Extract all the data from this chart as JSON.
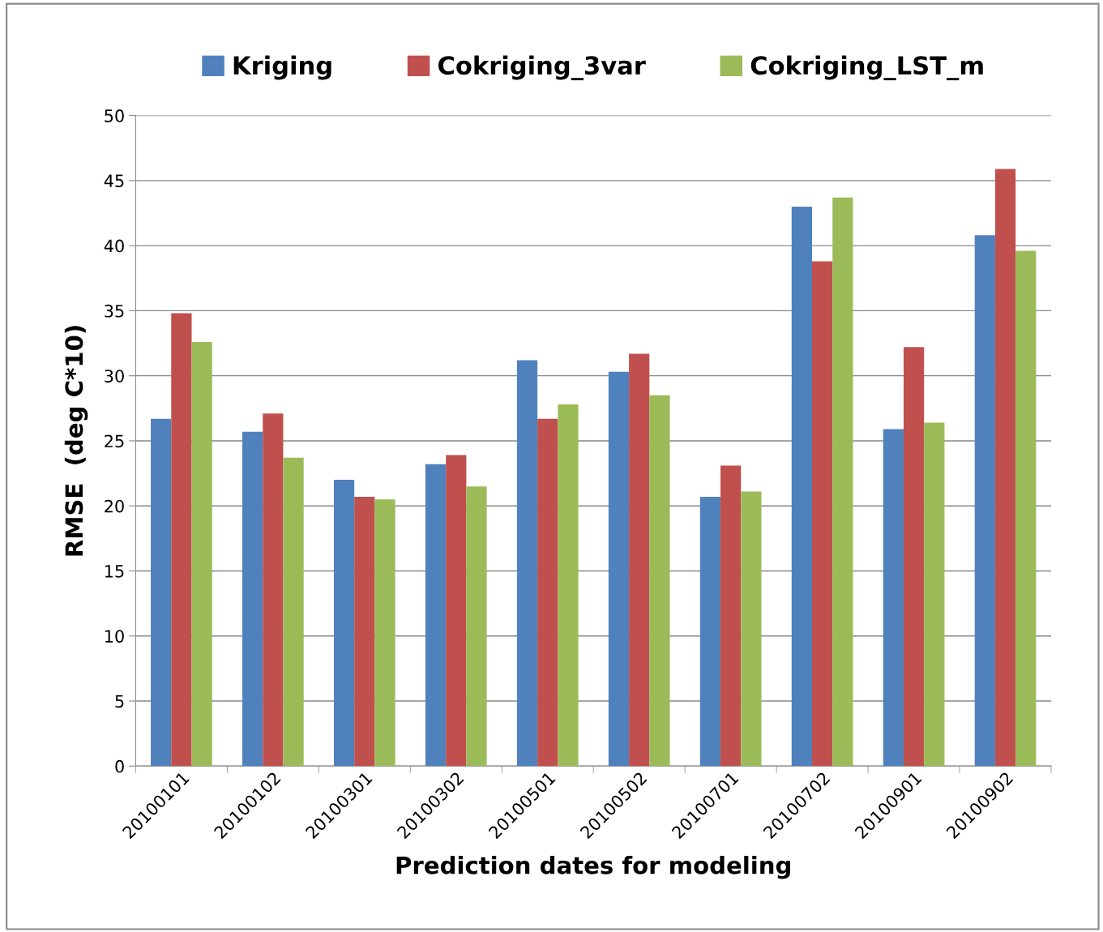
{
  "chart_data": {
    "type": "bar",
    "xlabel": "Prediction dates for modeling",
    "ylabel": "RMSE  (deg C*10)",
    "categories": [
      "20100101",
      "20100102",
      "20100301",
      "20100302",
      "20100501",
      "20100502",
      "20100701",
      "20100702",
      "20100901",
      "20100902"
    ],
    "series": [
      {
        "name": "Kriging",
        "color": "#4f81bd",
        "values": [
          26.7,
          25.7,
          22.0,
          23.2,
          31.2,
          30.3,
          20.7,
          43.0,
          25.9,
          40.8
        ]
      },
      {
        "name": "Cokriging_3var",
        "color": "#c0504d",
        "values": [
          34.8,
          27.1,
          20.7,
          23.9,
          26.7,
          31.7,
          23.1,
          38.8,
          32.2,
          45.9
        ]
      },
      {
        "name": "Cokriging_LST_m",
        "color": "#9bbb59",
        "values": [
          32.6,
          23.7,
          20.5,
          21.5,
          27.8,
          28.5,
          21.1,
          43.7,
          26.4,
          39.6
        ]
      }
    ],
    "ylim": [
      0,
      50
    ],
    "yticks": [
      0,
      5,
      10,
      15,
      20,
      25,
      30,
      35,
      40,
      45,
      50
    ],
    "grid": "y",
    "legend": "top"
  }
}
